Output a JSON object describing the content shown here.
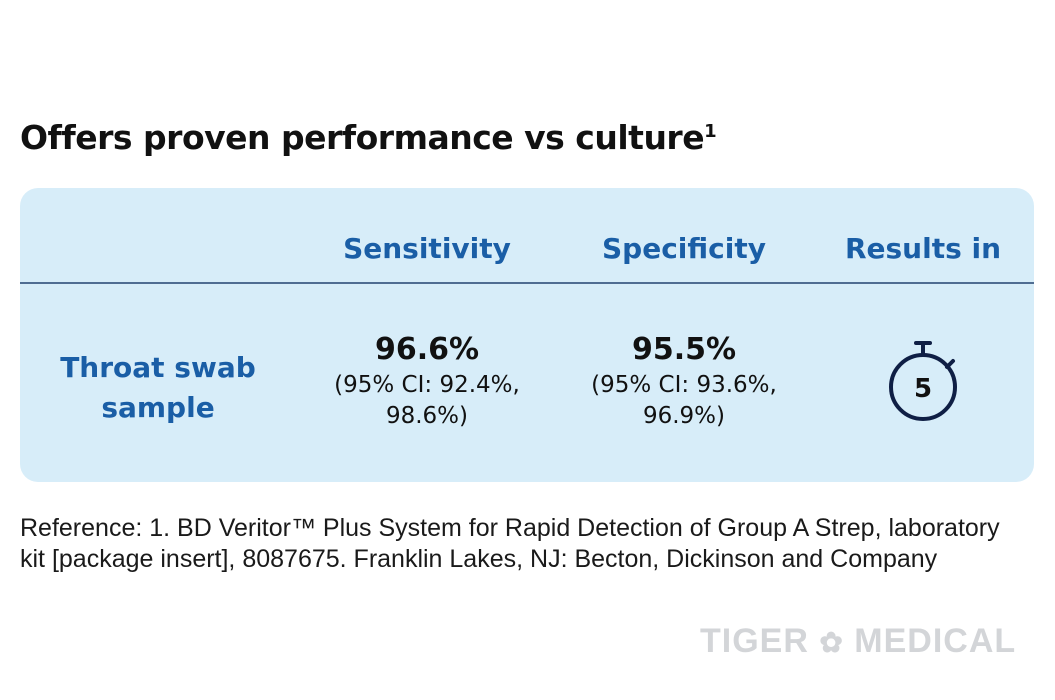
{
  "title": "Offers proven performance vs culture",
  "title_sup": "1",
  "table": {
    "headers": [
      "Sensitivity",
      "Specificity",
      "Results in"
    ],
    "row_label_line1": "Throat swab",
    "row_label_line2": "sample",
    "sensitivity": {
      "value": "96.6%",
      "ci_line1": "(95% CI: 92.4%,",
      "ci_line2": "98.6%)"
    },
    "specificity": {
      "value": "95.5%",
      "ci_line1": "(95% CI: 93.6%,",
      "ci_line2": "96.9%)"
    },
    "results": {
      "icon": "stopwatch-icon",
      "minutes": "5"
    }
  },
  "reference": "Reference: 1. BD Veritor™ Plus System for Rapid Detection of Group A Strep, laboratory kit [package insert], 8087675. Franklin Lakes, NJ: Becton, Dickinson and Company",
  "watermark": "TIGER MEDICAL",
  "colors": {
    "accent": "#1a5ea6",
    "card": "#d7edf9",
    "icon": "#0f1f45"
  }
}
